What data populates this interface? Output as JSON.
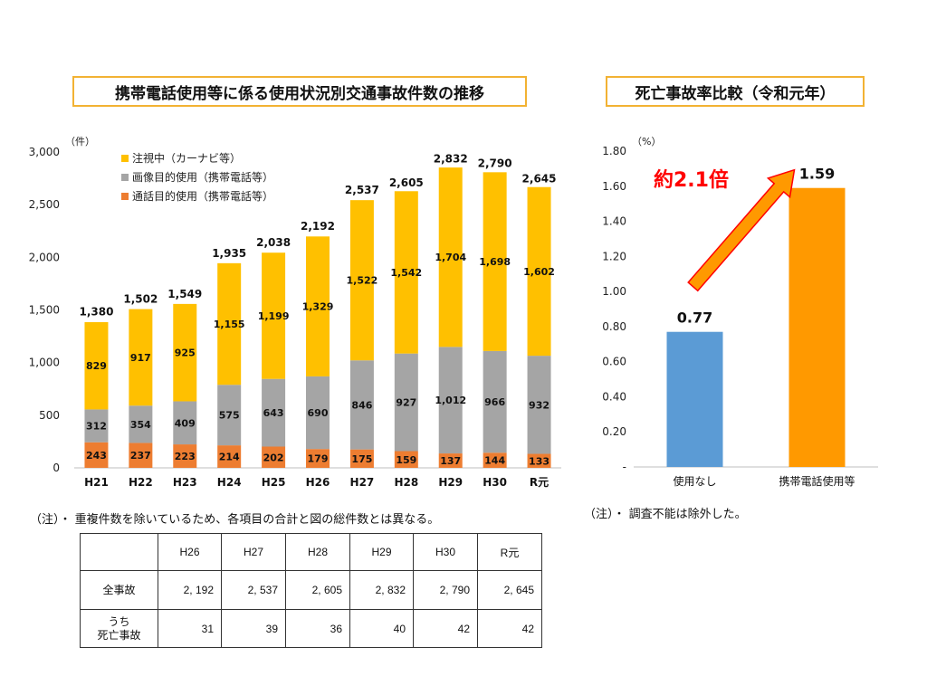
{
  "left_title": "携帯電話使用等に係る使用状況別交通事故件数の推移",
  "right_title": "死亡事故率比較（令和元年）",
  "chart_data": [
    {
      "type": "bar",
      "stacked": true,
      "unit_label": "（件）",
      "categories": [
        "H21",
        "H22",
        "H23",
        "H24",
        "H25",
        "H26",
        "H27",
        "H28",
        "H29",
        "H30",
        "R元"
      ],
      "series": [
        {
          "name": "通話目的使用（携帯電話等）",
          "color": "#ed7d31",
          "values": [
            243,
            237,
            223,
            214,
            202,
            179,
            175,
            159,
            137,
            144,
            133
          ],
          "labels": [
            "243",
            "237",
            "223",
            "214",
            "202",
            "179",
            "175",
            "159",
            "137",
            "144",
            "133"
          ]
        },
        {
          "name": "画像目的使用（携帯電話等）",
          "color": "#a5a5a5",
          "values": [
            312,
            354,
            409,
            575,
            643,
            690,
            846,
            927,
            1012,
            966,
            932
          ],
          "labels": [
            "312",
            "354",
            "409",
            "575",
            "643",
            "690",
            "846",
            "927",
            "1,012",
            "966",
            "932"
          ]
        },
        {
          "name": "注視中（カーナビ等）",
          "color": "#ffc000",
          "values": [
            829,
            917,
            925,
            1155,
            1199,
            1329,
            1522,
            1542,
            1704,
            1698,
            1602
          ],
          "labels": [
            "829",
            "917",
            "925",
            "1,155",
            "1,199",
            "1,329",
            "1,522",
            "1,542",
            "1,704",
            "1,698",
            "1,602"
          ]
        }
      ],
      "totals": [
        "1,380",
        "1,502",
        "1,549",
        "1,935",
        "2,038",
        "2,192",
        "2,537",
        "2,605",
        "2,832",
        "2,790",
        "2,645"
      ],
      "total_values": [
        1380,
        1502,
        1549,
        1935,
        2038,
        2192,
        2537,
        2605,
        2832,
        2790,
        2645
      ],
      "ylim": [
        0,
        3000
      ],
      "yticks": [
        0,
        500,
        1000,
        1500,
        2000,
        2500,
        3000
      ],
      "ytick_labels": [
        "0",
        "500",
        "1,000",
        "1,500",
        "2,000",
        "2,500",
        "3,000"
      ],
      "legend_position": "top-left"
    },
    {
      "type": "bar",
      "unit_label": "（%）",
      "categories": [
        "使用なし",
        "携帯電話使用等"
      ],
      "values": [
        0.77,
        1.59
      ],
      "value_labels": [
        "0.77",
        "1.59"
      ],
      "colors": [
        "#5b9bd5",
        "#ff9900"
      ],
      "ylim": [
        0,
        1.8
      ],
      "yticks": [
        0,
        0.2,
        0.4,
        0.6,
        0.8,
        1.0,
        1.2,
        1.4,
        1.6,
        1.8
      ],
      "ytick_labels": [
        "-",
        "0.20",
        "0.40",
        "0.60",
        "0.80",
        "1.00",
        "1.20",
        "1.40",
        "1.60",
        "1.80"
      ],
      "annotation": "約2.1倍",
      "annotation_color": "#ff0000"
    }
  ],
  "left_note": "（注）・ 重複件数を除いているため、各項目の合計と図の総件数とは異なる。",
  "right_note": "（注）・ 調査不能は除外した。",
  "table": {
    "headers": [
      "H26",
      "H27",
      "H28",
      "H29",
      "H30",
      "R元"
    ],
    "rows": [
      {
        "label": "全事故",
        "values": [
          "2, 192",
          "2, 537",
          "2, 605",
          "2, 832",
          "2, 790",
          "2, 645"
        ]
      },
      {
        "label_line1": "うち",
        "label_line2": "死亡事故",
        "values": [
          "31",
          "39",
          "36",
          "40",
          "42",
          "42"
        ]
      }
    ]
  }
}
